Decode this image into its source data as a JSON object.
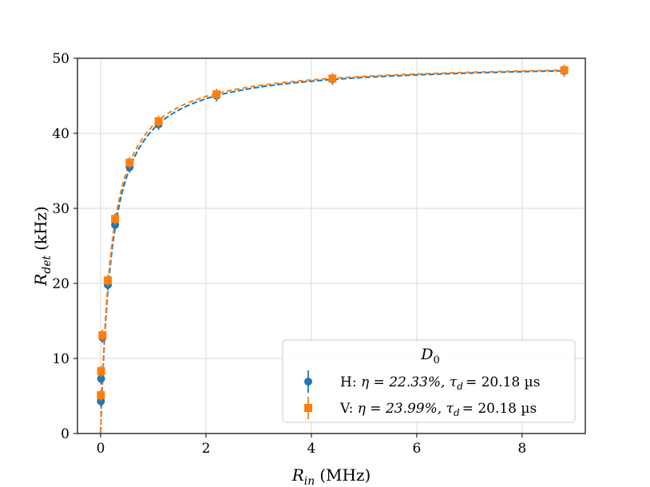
{
  "chart_data": {
    "type": "scatter",
    "title": "",
    "xlabel": {
      "symbol": "R",
      "sub": "in",
      "unit": "(MHz)"
    },
    "ylabel": {
      "symbol": "R",
      "sub": "det",
      "unit": "(kHz)"
    },
    "xlim": [
      -0.44,
      9.2
    ],
    "ylim": [
      0,
      50
    ],
    "xticks": [
      0,
      2,
      4,
      6,
      8
    ],
    "yticks": [
      0,
      10,
      20,
      30,
      40,
      50
    ],
    "grid": true,
    "legend": {
      "placement": "lower-right",
      "title": "D",
      "title_sub": "0",
      "entries": [
        {
          "prefix": "H:",
          "eta_label": "η = 22.33%,",
          "tau_label": "τ",
          "tau_sub": "d",
          "tau_value": "= 20.18 µs"
        },
        {
          "prefix": "V:",
          "eta_label": "η = 23.99%,",
          "tau_label": "τ",
          "tau_sub": "d",
          "tau_value": "= 20.18 µs"
        }
      ]
    },
    "series": [
      {
        "name": "H",
        "color": "#1f77b4",
        "marker": "circle",
        "eta": 0.2233,
        "tau_us": 20.18,
        "points": [
          [
            0.0043,
            4.3
          ],
          [
            0.0086,
            7.3
          ],
          [
            0.0344,
            12.8
          ],
          [
            0.137,
            19.8
          ],
          [
            0.275,
            27.8
          ],
          [
            0.55,
            35.5
          ],
          [
            1.1,
            41.2
          ],
          [
            2.2,
            45.0
          ],
          [
            4.4,
            47.2
          ],
          [
            8.8,
            48.3
          ]
        ]
      },
      {
        "name": "V",
        "color": "#ff7f0e",
        "marker": "square",
        "eta": 0.2399,
        "tau_us": 20.18,
        "points": [
          [
            0.0043,
            5.1
          ],
          [
            0.0086,
            8.3
          ],
          [
            0.0344,
            13.1
          ],
          [
            0.137,
            20.4
          ],
          [
            0.275,
            28.6
          ],
          [
            0.55,
            36.1
          ],
          [
            1.1,
            41.6
          ],
          [
            2.2,
            45.2
          ],
          [
            4.4,
            47.3
          ],
          [
            8.8,
            48.4
          ]
        ]
      }
    ]
  }
}
